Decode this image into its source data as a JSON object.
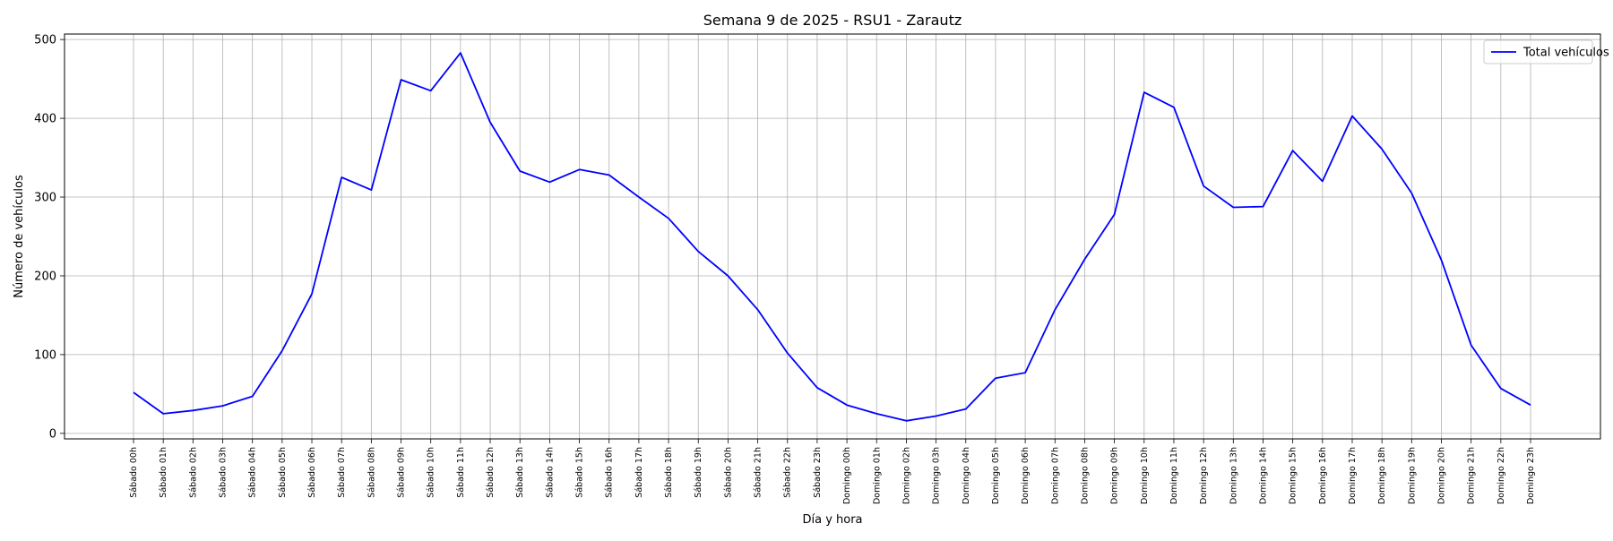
{
  "chart_data": {
    "type": "line",
    "title": "Semana 9 de 2025 - RSU1 - Zarautz",
    "xlabel": "Día y hora",
    "ylabel": "Número de vehículos",
    "ylim": [
      -7,
      507
    ],
    "yticks": [
      0,
      100,
      200,
      300,
      400,
      500
    ],
    "grid": true,
    "legend_position": "top-right",
    "categories": [
      "Sábado 00h",
      "Sábado 01h",
      "Sábado 02h",
      "Sábado 03h",
      "Sábado 04h",
      "Sábado 05h",
      "Sábado 06h",
      "Sábado 07h",
      "Sábado 08h",
      "Sábado 09h",
      "Sábado 10h",
      "Sábado 11h",
      "Sábado 12h",
      "Sábado 13h",
      "Sábado 14h",
      "Sábado 15h",
      "Sábado 16h",
      "Sábado 17h",
      "Sábado 18h",
      "Sábado 19h",
      "Sábado 20h",
      "Sábado 21h",
      "Sábado 22h",
      "Sábado 23h",
      "Domingo 00h",
      "Domingo 01h",
      "Domingo 02h",
      "Domingo 03h",
      "Domingo 04h",
      "Domingo 05h",
      "Domingo 06h",
      "Domingo 07h",
      "Domingo 08h",
      "Domingo 09h",
      "Domingo 10h",
      "Domingo 11h",
      "Domingo 12h",
      "Domingo 13h",
      "Domingo 14h",
      "Domingo 15h",
      "Domingo 16h",
      "Domingo 17h",
      "Domingo 18h",
      "Domingo 19h",
      "Domingo 20h",
      "Domingo 21h",
      "Domingo 22h",
      "Domingo 23h"
    ],
    "series": [
      {
        "name": "Total vehículos",
        "color": "#0000ff",
        "values": [
          52,
          25,
          29,
          35,
          47,
          105,
          177,
          325,
          309,
          449,
          435,
          483,
          395,
          333,
          319,
          335,
          328,
          300,
          273,
          231,
          200,
          157,
          102,
          58,
          36,
          25,
          16,
          22,
          31,
          70,
          77,
          157,
          221,
          278,
          433,
          414,
          314,
          287,
          288,
          359,
          320,
          403,
          361,
          305,
          220,
          112,
          57,
          36
        ]
      }
    ]
  }
}
